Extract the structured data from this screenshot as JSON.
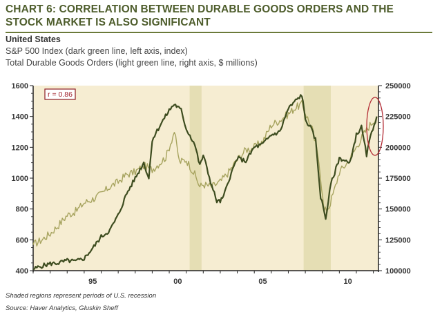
{
  "title": "CHART 6: CORRELATION BETWEEN DURABLE GOODS ORDERS AND THE STOCK MARKET IS ALSO SIGNIFICANT",
  "subtitle": {
    "region": "United States",
    "line1": "S&P 500 Index (dark green line, left axis, index)",
    "line2": "Total Durable Goods Orders (light green line, right axis, $ millions)"
  },
  "footnotes": {
    "shading": "Shaded regions represent periods of U.S. recession",
    "source": "Source: Haver Analytics, Gluskin Sheff"
  },
  "colors": {
    "plot_bg": "#f6edd2",
    "recession": "#e5deb4",
    "sp500": "#3d4c1f",
    "durables": "#a6a35e",
    "annotation": "#b22a33"
  },
  "chart_data": {
    "type": "line",
    "annotation": "r = 0.86",
    "x_ticks": [
      {
        "label": "95",
        "x": 1995
      },
      {
        "label": "00",
        "x": 2000
      },
      {
        "label": "05",
        "x": 2005
      },
      {
        "label": "10",
        "x": 2010
      }
    ],
    "xlim": [
      1992.0,
      2012.3
    ],
    "left_axis": {
      "ticks": [
        "1600",
        "1400",
        "1200",
        "1000",
        "800",
        "600",
        "400"
      ],
      "ylim": [
        400,
        1600
      ]
    },
    "right_axis": {
      "ticks": [
        "250000",
        "225000",
        "200000",
        "175000",
        "150000",
        "125000",
        "100000"
      ],
      "ylim": [
        100000,
        250000
      ]
    },
    "recessions": [
      {
        "start": 2001.2,
        "end": 2001.9
      },
      {
        "start": 2007.9,
        "end": 2009.5
      }
    ],
    "series": [
      {
        "name": "S&P 500 Index",
        "axis": "left",
        "x": [
          1992.0,
          1992.5,
          1993.0,
          1993.5,
          1994.0,
          1994.5,
          1995.0,
          1995.5,
          1996.0,
          1996.5,
          1997.0,
          1997.5,
          1998.0,
          1998.5,
          1998.8,
          1999.0,
          1999.5,
          2000.0,
          2000.3,
          2000.7,
          2001.0,
          2001.5,
          2001.8,
          2002.0,
          2002.5,
          2002.8,
          2003.0,
          2003.2,
          2003.5,
          2004.0,
          2004.5,
          2005.0,
          2005.5,
          2006.0,
          2006.5,
          2007.0,
          2007.5,
          2007.8,
          2008.0,
          2008.3,
          2008.6,
          2008.9,
          2009.2,
          2009.5,
          2009.8,
          2010.0,
          2010.4,
          2010.6,
          2011.0,
          2011.3,
          2011.6,
          2011.9,
          2012.2
        ],
        "y": [
          410,
          430,
          445,
          450,
          465,
          460,
          480,
          545,
          620,
          660,
          760,
          900,
          1000,
          1100,
          1000,
          1250,
          1350,
          1440,
          1480,
          1440,
          1320,
          1220,
          1080,
          1150,
          950,
          850,
          850,
          880,
          990,
          1130,
          1110,
          1200,
          1220,
          1280,
          1300,
          1450,
          1510,
          1540,
          1380,
          1330,
          1250,
          880,
          740,
          960,
          1060,
          1130,
          1110,
          1090,
          1280,
          1330,
          1150,
          1300,
          1400
        ]
      },
      {
        "name": "Total Durable Goods Orders",
        "axis": "right",
        "x": [
          1992.0,
          1992.5,
          1993.0,
          1993.5,
          1994.0,
          1994.5,
          1995.0,
          1995.5,
          1996.0,
          1996.5,
          1997.0,
          1997.5,
          1998.0,
          1998.5,
          1999.0,
          1999.5,
          1999.8,
          2000.0,
          2000.3,
          2000.6,
          2001.0,
          2001.5,
          2001.8,
          2002.0,
          2002.5,
          2003.0,
          2003.5,
          2004.0,
          2004.5,
          2005.0,
          2005.5,
          2006.0,
          2006.5,
          2007.0,
          2007.4,
          2007.8,
          2008.0,
          2008.4,
          2008.8,
          2009.1,
          2009.4,
          2009.7,
          2010.0,
          2010.5,
          2011.0,
          2011.4,
          2011.8,
          2012.2
        ],
        "y": [
          121000,
          125000,
          130000,
          137000,
          145000,
          148000,
          155000,
          158000,
          162000,
          168000,
          172000,
          178000,
          180000,
          185000,
          182000,
          188000,
          192000,
          200000,
          213000,
          188000,
          190000,
          178000,
          168000,
          170000,
          168000,
          172000,
          180000,
          190000,
          198000,
          200000,
          205000,
          218000,
          222000,
          227000,
          232000,
          235000,
          228000,
          215000,
          190000,
          148000,
          152000,
          165000,
          180000,
          188000,
          200000,
          210000,
          218000,
          225000
        ]
      }
    ]
  }
}
